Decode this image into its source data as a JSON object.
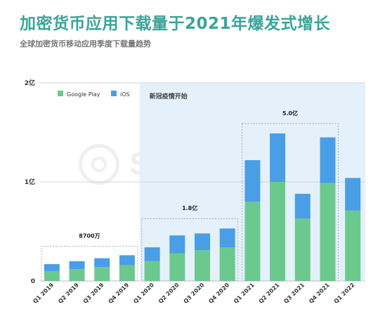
{
  "title": "加密货币应用下载量于2021年爆发式增长",
  "subtitle": "全球加密货币移动应用季度下载量趋势",
  "watermark": "SensorTower",
  "colors": {
    "google_play": "#6cc98d",
    "ios": "#4a9ee5",
    "covid_band": "#e4f1fb",
    "title": "#3aa598"
  },
  "chart_data": {
    "type": "bar",
    "stacked": true,
    "categories": [
      "Q1 2019",
      "Q2 2019",
      "Q3 2019",
      "Q4 2019",
      "Q1 2020",
      "Q2 2020",
      "Q3 2020",
      "Q4 2020",
      "Q1 2021",
      "Q2 2021",
      "Q3 2021",
      "Q4 2021",
      "Q1 2022"
    ],
    "series": [
      {
        "name": "Google Play",
        "color": "#6cc98d",
        "values": [
          0.1,
          0.12,
          0.14,
          0.16,
          0.2,
          0.28,
          0.31,
          0.34,
          0.8,
          1.0,
          0.63,
          0.99,
          0.71
        ]
      },
      {
        "name": "iOS",
        "color": "#4a9ee5",
        "values": [
          0.07,
          0.08,
          0.09,
          0.1,
          0.14,
          0.18,
          0.17,
          0.19,
          0.42,
          0.49,
          0.25,
          0.46,
          0.33
        ]
      }
    ],
    "ylim": [
      0,
      2
    ],
    "yticks": [
      {
        "value": 0,
        "label": "0"
      },
      {
        "value": 1,
        "label": "1亿"
      },
      {
        "value": 2,
        "label": "2亿"
      }
    ],
    "legend_position": "top-left",
    "shaded_region": {
      "from": "Q1 2020",
      "to": "Q1 2022",
      "label": "新冠疫情开始"
    },
    "annotations": [
      {
        "from": "Q1 2019",
        "to": "Q4 2019",
        "label": "8700万",
        "value": 0.35
      },
      {
        "from": "Q1 2020",
        "to": "Q4 2020",
        "label": "1.8亿",
        "value": 0.63
      },
      {
        "from": "Q1 2021",
        "to": "Q4 2021",
        "label": "5.0亿",
        "value": 1.59
      }
    ]
  }
}
